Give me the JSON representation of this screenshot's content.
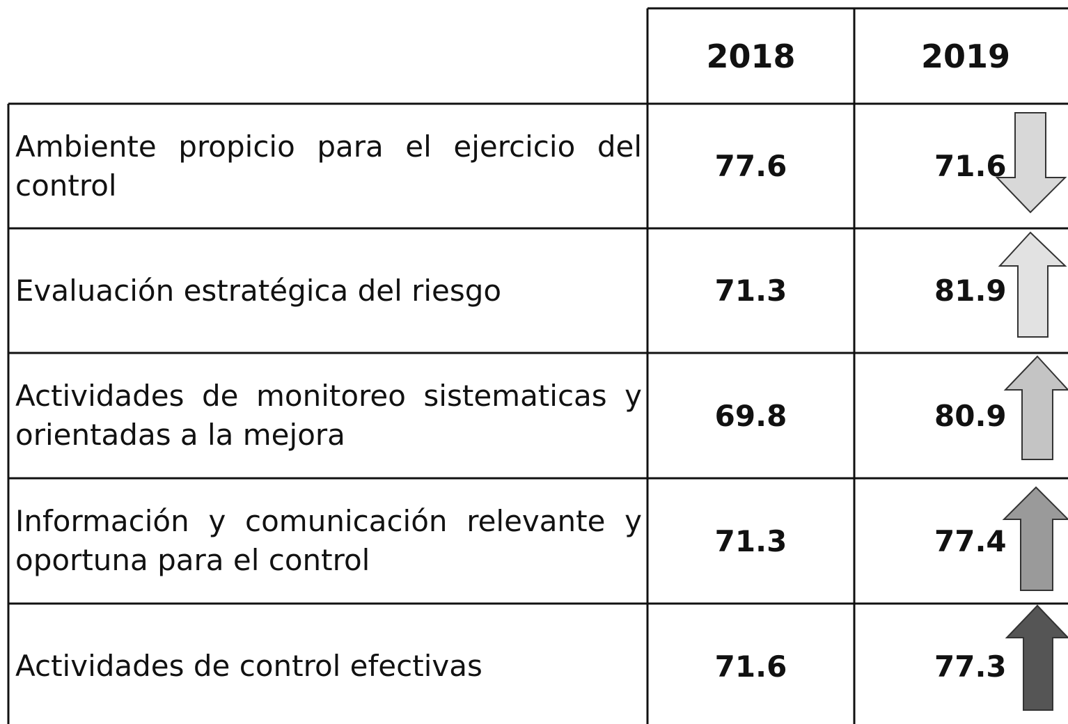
{
  "table": {
    "header": [
      "2018",
      "2019"
    ],
    "rows": [
      [
        "Ambiente propicio para el ejercicio del control",
        "77.6",
        "71.6"
      ],
      [
        "Evaluación estratégica del riesgo",
        "71.3",
        "81.9"
      ],
      [
        "Actividades de monitoreo sistematicas y orientadas a la mejora",
        "69.8",
        "80.9"
      ],
      [
        "Información y comunicación relevante y oportuna para el control",
        "71.3",
        "77.4"
      ],
      [
        "Actividades de control efectivas",
        "71.6",
        "77.3"
      ]
    ]
  }
}
